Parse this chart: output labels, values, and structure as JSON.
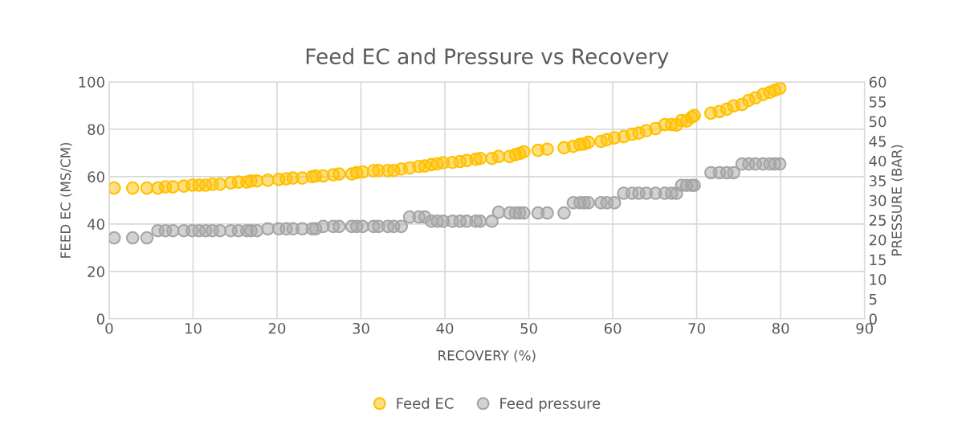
{
  "chart_data": {
    "type": "scatter",
    "title": "Feed EC and Pressure vs Recovery",
    "xlabel": "RECOVERY (%)",
    "ylabel": "FEED EC (MS/CM)",
    "y2label": "PRESSURE (BAR)",
    "x": [
      0.6,
      2.8,
      4.5,
      5.8,
      6.7,
      7.6,
      8.9,
      9.9,
      10.7,
      11.5,
      12.3,
      13.2,
      14.5,
      15.4,
      16.4,
      16.9,
      17.6,
      18.9,
      20.2,
      21.1,
      21.9,
      23.0,
      24.2,
      24.6,
      25.5,
      26.7,
      27.4,
      28.9,
      29.5,
      30.2,
      31.5,
      32.1,
      33.2,
      33.9,
      34.8,
      35.8,
      36.9,
      37.6,
      38.4,
      39.1,
      39.8,
      40.9,
      41.8,
      42.6,
      43.7,
      44.2,
      45.6,
      46.4,
      47.7,
      48.4,
      48.9,
      49.4,
      51.1,
      52.2,
      54.2,
      55.3,
      56.1,
      56.6,
      57.1,
      58.6,
      59.3,
      60.2,
      61.3,
      62.3,
      63.1,
      64.0,
      65.1,
      66.2,
      67.0,
      67.6,
      68.2,
      68.8,
      69.4,
      69.7,
      71.7,
      72.7,
      73.6,
      74.4,
      75.4,
      76.2,
      77.0,
      77.9,
      78.7,
      79.3,
      79.9
    ],
    "series": [
      {
        "name": "Feed EC",
        "color": "#ffc000",
        "values": [
          55.2,
          55.2,
          55.2,
          55.2,
          55.7,
          55.7,
          56.0,
          56.4,
          56.4,
          56.4,
          56.8,
          56.8,
          57.4,
          57.7,
          57.7,
          58.2,
          58.2,
          58.5,
          58.8,
          59.1,
          59.4,
          59.4,
          60.0,
          60.3,
          60.3,
          60.8,
          61.1,
          61.1,
          61.7,
          62.0,
          62.5,
          62.6,
          62.6,
          62.6,
          63.2,
          63.7,
          64.3,
          64.5,
          65.1,
          65.4,
          65.9,
          66.0,
          66.4,
          66.8,
          67.4,
          67.7,
          67.7,
          68.5,
          68.5,
          69.3,
          69.8,
          70.5,
          71.1,
          71.6,
          72.2,
          72.8,
          73.6,
          73.8,
          74.5,
          74.9,
          75.6,
          76.4,
          76.9,
          77.9,
          78.4,
          79.4,
          80.3,
          82.0,
          82.0,
          81.8,
          83.7,
          83.5,
          85.1,
          85.8,
          86.8,
          87.5,
          88.5,
          89.9,
          90.5,
          92.2,
          93.3,
          94.7,
          95.6,
          96.5,
          97.3
        ]
      },
      {
        "name": "Feed pressure",
        "color": "#a5a5a5",
        "axis": "y2",
        "values": [
          20.5,
          20.5,
          20.5,
          22.3,
          22.3,
          22.3,
          22.3,
          22.3,
          22.3,
          22.3,
          22.3,
          22.3,
          22.3,
          22.3,
          22.3,
          22.3,
          22.3,
          22.8,
          22.8,
          22.8,
          22.8,
          22.8,
          22.8,
          22.8,
          23.4,
          23.4,
          23.4,
          23.4,
          23.4,
          23.4,
          23.4,
          23.4,
          23.4,
          23.4,
          23.4,
          25.8,
          25.8,
          25.8,
          24.7,
          24.7,
          24.7,
          24.7,
          24.7,
          24.7,
          24.7,
          24.7,
          24.7,
          27.0,
          26.8,
          26.8,
          26.8,
          26.8,
          26.8,
          26.8,
          26.8,
          29.4,
          29.4,
          29.4,
          29.4,
          29.4,
          29.4,
          29.4,
          31.8,
          31.8,
          31.8,
          31.8,
          31.8,
          31.8,
          31.8,
          31.8,
          33.8,
          33.8,
          33.8,
          33.8,
          37.0,
          37.0,
          37.0,
          37.0,
          39.2,
          39.2,
          39.2,
          39.2,
          39.2,
          39.2,
          39.2
        ]
      }
    ],
    "xlim": [
      0,
      90
    ],
    "xticks": [
      0,
      10,
      20,
      30,
      40,
      50,
      60,
      70,
      80,
      90
    ],
    "ylim": [
      0,
      100
    ],
    "yticks": [
      0,
      20,
      40,
      60,
      80,
      100
    ],
    "y2lim": [
      0,
      60
    ],
    "y2ticks": [
      0,
      5,
      10,
      15,
      20,
      25,
      30,
      35,
      40,
      45,
      50,
      55,
      60
    ],
    "grid": true,
    "legend": "bottom",
    "marker": "circle"
  }
}
